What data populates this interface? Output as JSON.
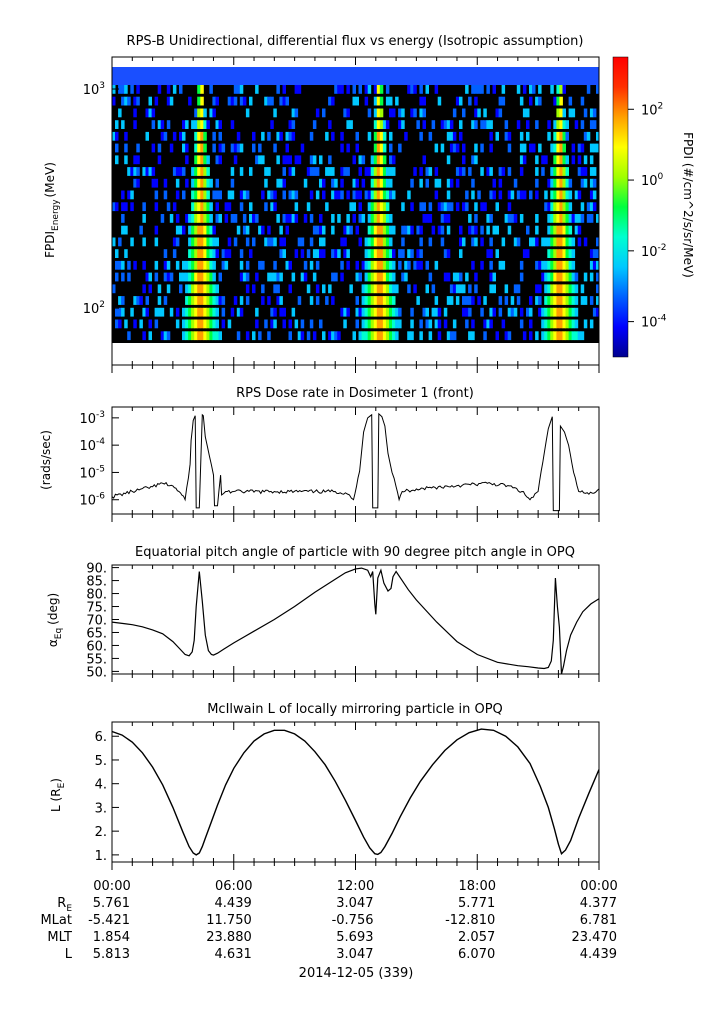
{
  "chart_data": [
    {
      "type": "heatmap",
      "title": "RPS-B  Unidirectional, differential flux vs energy (Isotropic assumption)",
      "ylabel": {
        "main": "FPDI",
        "sub": "Energy",
        "unit": "(MeV)"
      },
      "yscale": "log",
      "ylim": [
        55,
        1400
      ],
      "yticks": [
        {
          "base": "10",
          "exp": "2",
          "value": 100
        },
        {
          "base": "10",
          "exp": "3",
          "value": 1000
        }
      ],
      "colorbar": {
        "label": "FPDI (#/cm^2/s/sr/MeV)",
        "scale": "log",
        "range": [
          1e-05,
          3000
        ],
        "ticks": [
          {
            "base": "10",
            "exp": "-4",
            "value": 0.0001
          },
          {
            "base": "10",
            "exp": "-2",
            "value": 0.01
          },
          {
            "base": "10",
            "exp": "0",
            "value": 1
          },
          {
            "base": "10",
            "exp": "2",
            "value": 100
          }
        ],
        "colors": [
          "#00008f",
          "#0000ff",
          "#0060ff",
          "#00c8ff",
          "#00ffd0",
          "#00ff40",
          "#a0ff00",
          "#ffff00",
          "#ffa000",
          "#ff3000",
          "#ff0000"
        ]
      },
      "belt_passes_hours": [
        4.3,
        13.1,
        22.0
      ],
      "background_color": "#000000",
      "top_band_color": "#1a4fff"
    },
    {
      "type": "line",
      "title": "RPS  Dose rate in Dosimeter 1 (front)",
      "ylabel": "(rads/sec)",
      "yscale": "log",
      "ylim": [
        3e-07,
        0.0025
      ],
      "yticks": [
        {
          "base": "10",
          "exp": "-6",
          "value": 1e-06
        },
        {
          "base": "10",
          "exp": "-5",
          "value": 1e-05
        },
        {
          "base": "10",
          "exp": "-4",
          "value": 0.0001
        },
        {
          "base": "10",
          "exp": "-3",
          "value": 0.001
        }
      ],
      "x": [
        0,
        1,
        2,
        2.5,
        3,
        3.3,
        3.6,
        3.85,
        3.9,
        4.0,
        4.1,
        4.15,
        4.3,
        4.45,
        4.5,
        4.6,
        4.8,
        5.0,
        5.05,
        5.2,
        5.35,
        5.4,
        5.6,
        6,
        8,
        10,
        11,
        11.5,
        11.7,
        11.9,
        12.2,
        12.4,
        12.6,
        12.8,
        12.85,
        12.9,
        13.0,
        13.1,
        13.15,
        13.3,
        13.45,
        13.6,
        13.8,
        14.0,
        14.15,
        14.3,
        14.6,
        15,
        17,
        18.5,
        19.5,
        20.2,
        20.6,
        21.0,
        21.3,
        21.5,
        21.7,
        21.75,
        21.8,
        21.95,
        22.0,
        22.05,
        22.1,
        22.3,
        22.5,
        22.75,
        23.0,
        23.5,
        24
      ],
      "y": [
        1.3e-06,
        2e-06,
        3e-06,
        4e-06,
        3.2e-06,
        2e-06,
        1e-06,
        2e-05,
        0.00015,
        0.0008,
        0.0012,
        5e-07,
        5e-07,
        0.0013,
        0.0012,
        0.0002,
        4e-05,
        8e-06,
        6e-07,
        6e-07,
        8e-06,
        1.5e-06,
        2e-06,
        2e-06,
        2e-06,
        2e-06,
        2e-06,
        1.8e-06,
        1.5e-06,
        1e-06,
        1.1e-05,
        0.0003,
        0.001,
        0.0013,
        5e-07,
        5e-07,
        5e-07,
        5e-07,
        0.0014,
        0.0011,
        0.0005,
        5e-05,
        1e-05,
        3e-06,
        1e-06,
        2e-06,
        2.2e-06,
        2.5e-06,
        3.3e-06,
        4e-06,
        3.3e-06,
        2e-06,
        1e-06,
        2e-06,
        5e-05,
        0.0004,
        0.0011,
        4e-07,
        4e-07,
        4e-07,
        4e-07,
        4e-07,
        0.0005,
        0.0003,
        0.0001,
        1e-05,
        2e-06,
        1.6e-06,
        2.5e-06
      ],
      "style": "noisy line"
    },
    {
      "type": "line",
      "title": "Equatorial pitch angle of particle with 90 degree pitch angle in OPQ",
      "ylabel": {
        "main": "α",
        "sub": "Eq",
        "unit": "(deg)"
      },
      "ylim": [
        49,
        91
      ],
      "yticks": [
        {
          "label": "50.",
          "value": 50
        },
        {
          "label": "55.",
          "value": 55
        },
        {
          "label": "60.",
          "value": 60
        },
        {
          "label": "65.",
          "value": 65
        },
        {
          "label": "70.",
          "value": 70
        },
        {
          "label": "75.",
          "value": 75
        },
        {
          "label": "80.",
          "value": 80
        },
        {
          "label": "85.",
          "value": 85
        },
        {
          "label": "90.",
          "value": 90
        }
      ],
      "x": [
        0,
        0.5,
        1,
        1.5,
        2,
        2.5,
        3,
        3.3,
        3.6,
        3.8,
        3.95,
        4.05,
        4.15,
        4.3,
        4.45,
        4.6,
        4.75,
        4.9,
        5.0,
        5.2,
        5.5,
        6,
        7,
        8,
        9,
        10,
        11,
        11.5,
        12,
        12.3,
        12.6,
        12.75,
        12.85,
        12.95,
        13.0,
        13.1,
        13.25,
        13.4,
        13.6,
        13.75,
        13.85,
        14.0,
        14.3,
        14.6,
        15,
        16,
        17,
        18,
        19,
        20,
        20.5,
        21.0,
        21.3,
        21.5,
        21.65,
        21.75,
        21.85,
        21.95,
        22.05,
        22.15,
        22.25,
        22.4,
        22.6,
        22.9,
        23.2,
        23.6,
        24
      ],
      "y": [
        69,
        68.5,
        68,
        67.2,
        66,
        64.5,
        61.5,
        59,
        56.5,
        56,
        57.5,
        62,
        75,
        88.5,
        77,
        64,
        58,
        56.5,
        56.3,
        57,
        58.5,
        61,
        65.5,
        70,
        75,
        80.5,
        85.5,
        88,
        89.5,
        89.8,
        89,
        86.5,
        88.5,
        76,
        72,
        86,
        89,
        84,
        81,
        82,
        86.5,
        88.5,
        85,
        81.5,
        77.5,
        69,
        61.5,
        56.5,
        53.5,
        52.2,
        51.8,
        51.3,
        51.1,
        51.5,
        54,
        62,
        86,
        75,
        67,
        49,
        52,
        58,
        64,
        69,
        73,
        76,
        78
      ]
    },
    {
      "type": "line",
      "title": "McIlwain L of locally mirroring particle in OPQ",
      "ylabel": {
        "main": "L (R",
        "sub": "E",
        "unit": ")"
      },
      "ylim": [
        0.7,
        6.6
      ],
      "yticks": [
        {
          "label": "1.",
          "value": 1
        },
        {
          "label": "2.",
          "value": 2
        },
        {
          "label": "3.",
          "value": 3
        },
        {
          "label": "4.",
          "value": 4
        },
        {
          "label": "5.",
          "value": 5
        },
        {
          "label": "6.",
          "value": 6
        }
      ],
      "x": [
        0,
        0.5,
        1,
        1.5,
        2,
        2.5,
        3,
        3.5,
        3.8,
        4.0,
        4.15,
        4.3,
        4.45,
        4.6,
        4.9,
        5.2,
        5.6,
        6.0,
        6.5,
        7.0,
        7.5,
        8.0,
        8.5,
        9.0,
        9.5,
        10.0,
        10.5,
        11.0,
        11.5,
        12.0,
        12.4,
        12.7,
        12.95,
        13.1,
        13.25,
        13.45,
        13.8,
        14.2,
        14.7,
        15.2,
        15.8,
        16.4,
        17.0,
        17.6,
        18.2,
        18.8,
        19.4,
        20.0,
        20.6,
        21.1,
        21.5,
        21.8,
        22.0,
        22.15,
        22.35,
        22.6,
        23.0,
        23.5,
        24.0
      ],
      "y": [
        6.2,
        6.05,
        5.75,
        5.3,
        4.7,
        3.95,
        3.0,
        1.95,
        1.35,
        1.08,
        1.0,
        1.08,
        1.35,
        1.7,
        2.4,
        3.1,
        3.95,
        4.65,
        5.3,
        5.8,
        6.1,
        6.25,
        6.25,
        6.1,
        5.8,
        5.35,
        4.8,
        4.1,
        3.3,
        2.45,
        1.75,
        1.3,
        1.05,
        1.02,
        1.1,
        1.35,
        1.9,
        2.6,
        3.4,
        4.1,
        4.8,
        5.4,
        5.85,
        6.15,
        6.3,
        6.25,
        6.0,
        5.55,
        4.85,
        3.9,
        3.0,
        2.1,
        1.45,
        1.05,
        1.2,
        1.6,
        2.55,
        3.6,
        4.6
      ]
    }
  ],
  "x_axis": {
    "tick_labels": [
      "00:00",
      "06:00",
      "12:00",
      "18:00",
      "00:00"
    ],
    "tick_hours": [
      0,
      6,
      12,
      18,
      24
    ],
    "date_label": "2014-12-05 (339)"
  },
  "ephemeris": {
    "rows": [
      {
        "name": "R",
        "sub": "E",
        "values": [
          "5.761",
          "4.439",
          "3.047",
          "5.771",
          "4.377"
        ]
      },
      {
        "name": "MLat",
        "sub": "",
        "values": [
          "-5.421",
          "11.750",
          "-0.756",
          "-12.810",
          "6.781"
        ]
      },
      {
        "name": "MLT",
        "sub": "",
        "values": [
          "1.854",
          "23.880",
          "5.693",
          "2.057",
          "23.470"
        ]
      },
      {
        "name": "L",
        "sub": "",
        "values": [
          "5.813",
          "4.631",
          "3.047",
          "6.070",
          "4.439"
        ]
      }
    ]
  }
}
